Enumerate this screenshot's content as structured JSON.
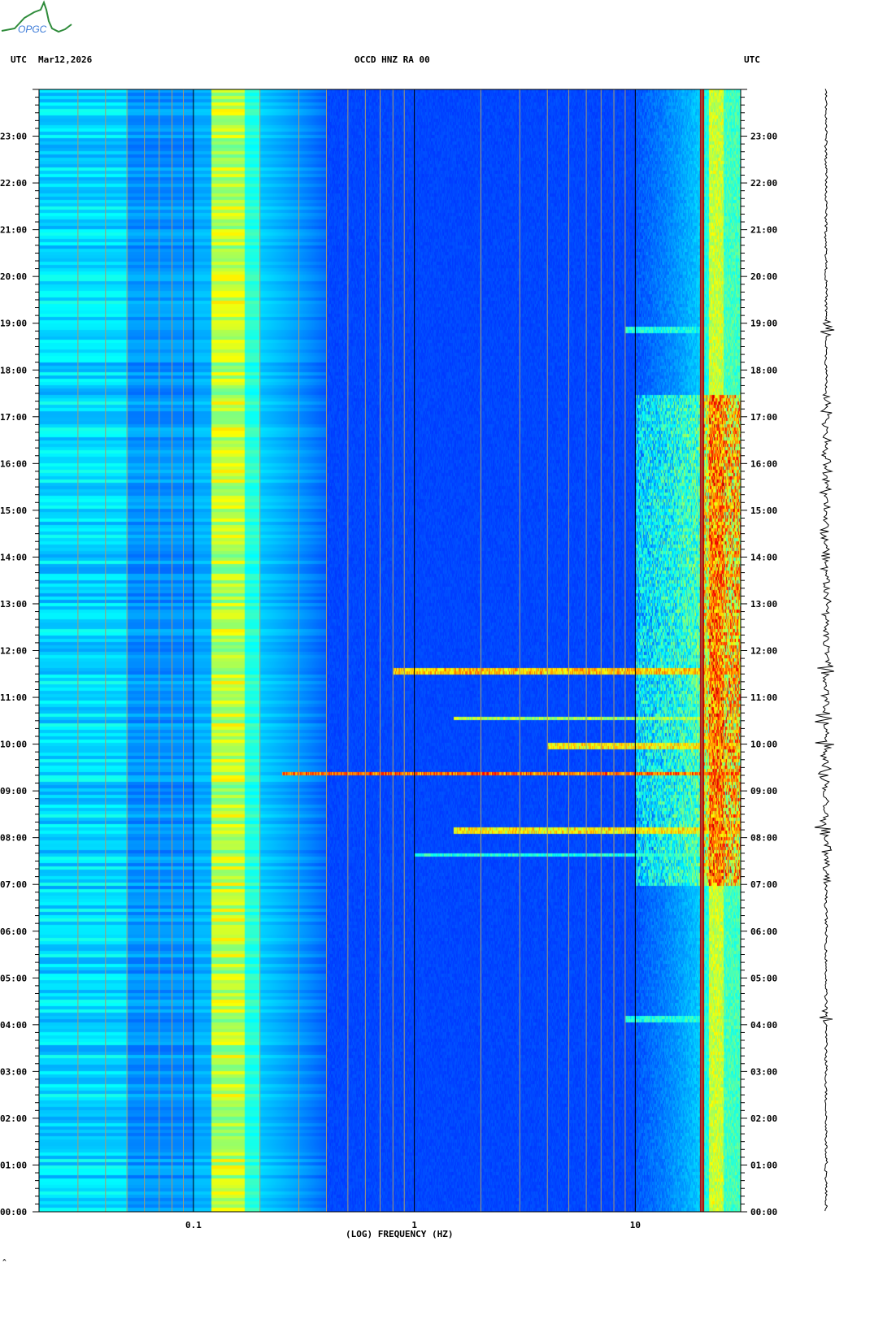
{
  "logo_text": "OPGC",
  "header": {
    "left_tz": "UTC",
    "date": "Mar12,2026",
    "station": "OCCD HNZ RA 00",
    "right_tz": "UTC"
  },
  "footer_mark": "^",
  "chart_data": {
    "type": "heatmap",
    "title": "OCCD HNZ RA 00",
    "subtitle": "Mar12,2026",
    "xlabel": "(LOG) FREQUENCY (HZ)",
    "ylabel": "UTC",
    "x_scale": "log",
    "xlim": [
      0.02,
      30
    ],
    "x_ticks": [
      {
        "value": 0.1,
        "label": "0.1"
      },
      {
        "value": 1,
        "label": "1"
      },
      {
        "value": 10,
        "label": "10"
      }
    ],
    "ylim": [
      0,
      24
    ],
    "y_ticks": [
      {
        "value": 0,
        "label": "00:00"
      },
      {
        "value": 1,
        "label": "01:00"
      },
      {
        "value": 2,
        "label": "02:00"
      },
      {
        "value": 3,
        "label": "03:00"
      },
      {
        "value": 4,
        "label": "04:00"
      },
      {
        "value": 5,
        "label": "05:00"
      },
      {
        "value": 6,
        "label": "06:00"
      },
      {
        "value": 7,
        "label": "07:00"
      },
      {
        "value": 8,
        "label": "08:00"
      },
      {
        "value": 9,
        "label": "09:00"
      },
      {
        "value": 10,
        "label": "10:00"
      },
      {
        "value": 11,
        "label": "11:00"
      },
      {
        "value": 12,
        "label": "12:00"
      },
      {
        "value": 13,
        "label": "13:00"
      },
      {
        "value": 14,
        "label": "14:00"
      },
      {
        "value": 15,
        "label": "15:00"
      },
      {
        "value": 16,
        "label": "16:00"
      },
      {
        "value": 17,
        "label": "17:00"
      },
      {
        "value": 18,
        "label": "18:00"
      },
      {
        "value": 19,
        "label": "19:00"
      },
      {
        "value": 20,
        "label": "20:00"
      },
      {
        "value": 21,
        "label": "21:00"
      },
      {
        "value": 22,
        "label": "22:00"
      },
      {
        "value": 23,
        "label": "23:00"
      }
    ],
    "colormap": "jet",
    "persistent_bands_hz": [
      {
        "from": 0.12,
        "to": 0.17,
        "level": 0.6
      },
      {
        "from": 19.8,
        "to": 20.2,
        "level": 1.0
      },
      {
        "from": 21.5,
        "to": 25,
        "level": 0.6
      }
    ],
    "events": [
      {
        "hour": 9.4,
        "min_hz": 0.25,
        "level": 0.85
      },
      {
        "hour": 11.6,
        "min_hz": 0.8,
        "level": 0.75
      },
      {
        "hour": 8.2,
        "min_hz": 1.5,
        "level": 0.7
      },
      {
        "hour": 10.6,
        "min_hz": 1.5,
        "level": 0.6
      },
      {
        "hour": 10.0,
        "min_hz": 4,
        "level": 0.7
      },
      {
        "hour": 7.65,
        "min_hz": 1.0,
        "level": 0.45
      },
      {
        "hour": 4.15,
        "min_hz": 9,
        "level": 0.45
      },
      {
        "hour": 18.9,
        "min_hz": 9,
        "level": 0.45
      }
    ],
    "high_freq_activity_hours": [
      7,
      17.5
    ]
  }
}
